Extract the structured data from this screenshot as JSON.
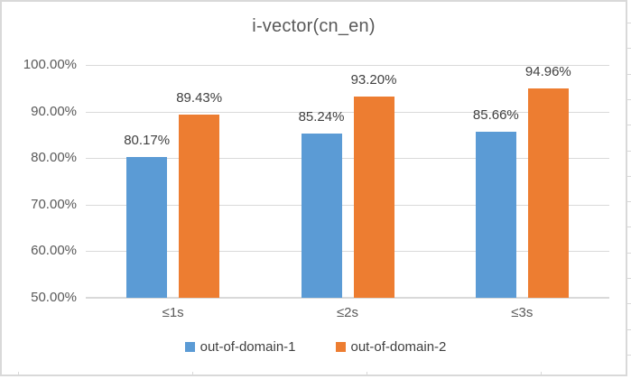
{
  "window": {
    "background": "#ffffff",
    "frame_border_color": "#d9d9d9"
  },
  "chart_data": {
    "type": "bar",
    "title": "i-vector(cn_en)",
    "categories": [
      "≤1s",
      "≤2s",
      "≤3s"
    ],
    "series": [
      {
        "name": "out-of-domain-1",
        "color": "#5B9BD5",
        "values": [
          80.17,
          85.24,
          85.66
        ],
        "labels": [
          "80.17%",
          "85.24%",
          "85.66%"
        ]
      },
      {
        "name": "out-of-domain-2",
        "color": "#ED7D31",
        "values": [
          89.43,
          93.2,
          94.96
        ],
        "labels": [
          "89.43%",
          "93.20%",
          "94.96%"
        ]
      }
    ],
    "xlabel": "",
    "ylabel": "",
    "ylim": [
      50,
      100
    ],
    "yticks": [
      {
        "value": 50,
        "label": "50.00%"
      },
      {
        "value": 60,
        "label": "60.00%"
      },
      {
        "value": 70,
        "label": "70.00%"
      },
      {
        "value": 80,
        "label": "80.00%"
      },
      {
        "value": 90,
        "label": "90.00%"
      },
      {
        "value": 100,
        "label": "100.00%"
      }
    ],
    "grid": true,
    "legend_position": "bottom"
  },
  "colors": {
    "title_text": "#595959",
    "axis_text": "#595959",
    "data_label_text": "#404040",
    "gridline": "#d9d9d9",
    "series_blue": "#5B9BD5",
    "series_orange": "#ED7D31"
  }
}
